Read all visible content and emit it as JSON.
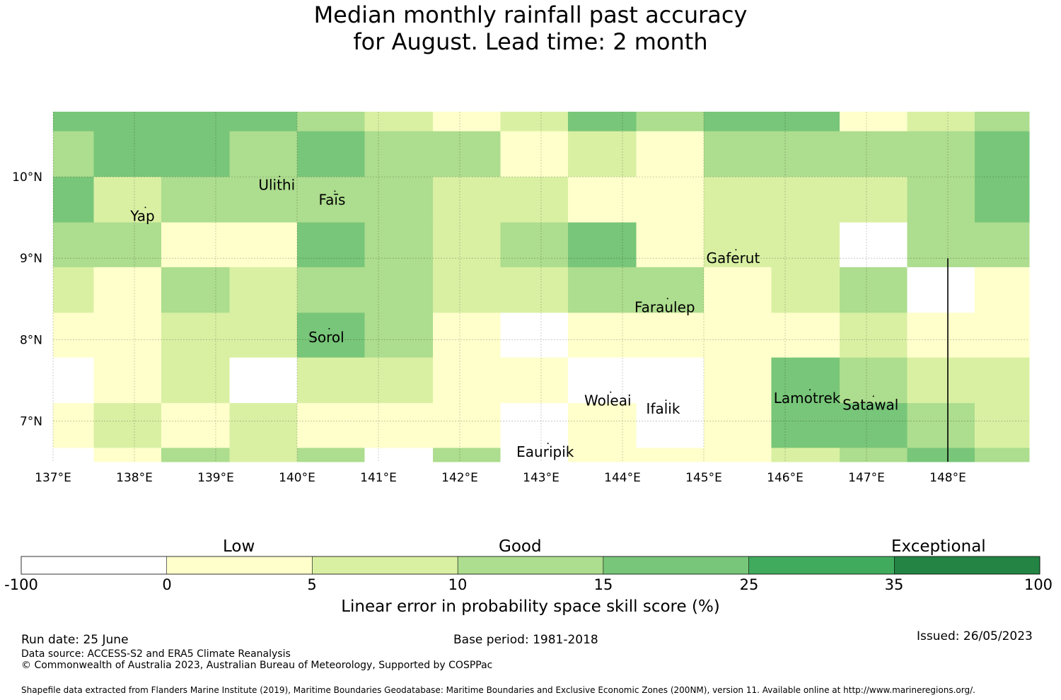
{
  "title": {
    "line1": "Median monthly rainfall past accuracy",
    "line2": "for August. Lead time: 2 month"
  },
  "map": {
    "lon_range": [
      137,
      149
    ],
    "lat_range": [
      6.5,
      10.8
    ],
    "lon_ticks": [
      {
        "value": 137,
        "label": "137°E"
      },
      {
        "value": 138,
        "label": "138°E"
      },
      {
        "value": 139,
        "label": "139°E"
      },
      {
        "value": 140,
        "label": "140°E"
      },
      {
        "value": 141,
        "label": "141°E"
      },
      {
        "value": 142,
        "label": "142°E"
      },
      {
        "value": 143,
        "label": "143°E"
      },
      {
        "value": 144,
        "label": "144°E"
      },
      {
        "value": 145,
        "label": "145°E"
      },
      {
        "value": 146,
        "label": "146°E"
      },
      {
        "value": 147,
        "label": "147°E"
      },
      {
        "value": 148,
        "label": "148°E"
      }
    ],
    "lat_ticks": [
      {
        "value": 10,
        "label": "10°N"
      },
      {
        "value": 9,
        "label": "9°N"
      },
      {
        "value": 8,
        "label": "8°N"
      },
      {
        "value": 7,
        "label": "7°N"
      }
    ],
    "col_edges": [
      137,
      137.5,
      138.33,
      139.17,
      140,
      140.83,
      141.67,
      142.5,
      143.33,
      144.17,
      145,
      145.83,
      146.67,
      147.5,
      148.33,
      149
    ],
    "row_edges": [
      10.8,
      10.56,
      10,
      9.44,
      8.89,
      8.33,
      7.78,
      7.22,
      6.67,
      6.5
    ],
    "grid_classes": [
      [
        3,
        3,
        3,
        3,
        2,
        1,
        0,
        1,
        3,
        2,
        3,
        3,
        0,
        1,
        2
      ],
      [
        2,
        3,
        3,
        2,
        3,
        2,
        2,
        0,
        1,
        0,
        2,
        2,
        2,
        2,
        3
      ],
      [
        3,
        1,
        2,
        2,
        2,
        2,
        1,
        1,
        0,
        0,
        1,
        1,
        1,
        2,
        3
      ],
      [
        2,
        2,
        0,
        0,
        3,
        2,
        1,
        2,
        3,
        0,
        1,
        1,
        -1,
        2,
        2
      ],
      [
        1,
        0,
        2,
        1,
        2,
        2,
        1,
        1,
        2,
        2,
        0,
        1,
        2,
        -1,
        0
      ],
      [
        0,
        0,
        1,
        1,
        3,
        2,
        0,
        -1,
        0,
        0,
        0,
        0,
        1,
        0,
        0
      ],
      [
        -1,
        0,
        1,
        -1,
        1,
        1,
        0,
        0,
        -1,
        -1,
        0,
        3,
        2,
        1,
        1
      ],
      [
        0,
        1,
        0,
        1,
        0,
        0,
        0,
        -1,
        0,
        -1,
        0,
        3,
        3,
        2,
        1
      ],
      [
        -1,
        0,
        2,
        1,
        2,
        -1,
        2,
        -1,
        0,
        0,
        0,
        1,
        2,
        3,
        2
      ]
    ],
    "places": [
      {
        "name": "Ulithi",
        "lon": 139.75,
        "lat": 9.9
      },
      {
        "name": "Faīs",
        "lon": 140.43,
        "lat": 9.72
      },
      {
        "name": "Yap",
        "lon": 138.1,
        "lat": 9.52
      },
      {
        "name": "Gaferut",
        "lon": 145.36,
        "lat": 9.0
      },
      {
        "name": "Faraulep",
        "lon": 144.52,
        "lat": 8.4
      },
      {
        "name": "Sorol",
        "lon": 140.36,
        "lat": 8.03
      },
      {
        "name": "Lamotrek",
        "lon": 146.27,
        "lat": 7.28
      },
      {
        "name": "Satawal",
        "lon": 147.05,
        "lat": 7.2
      },
      {
        "name": "Woleai",
        "lon": 143.82,
        "lat": 7.25
      },
      {
        "name": "Ifalik",
        "lon": 144.5,
        "lat": 7.15
      },
      {
        "name": "Eauripik",
        "lon": 143.05,
        "lat": 6.62
      }
    ],
    "boundary_line": {
      "lon": 148,
      "lat_from": 6.5,
      "lat_to": 9.0
    }
  },
  "colorbar": {
    "colors": [
      "#ffffff",
      "#ffffcc",
      "#d9f0a3",
      "#addd8e",
      "#78c679",
      "#41ab5d",
      "#238443"
    ],
    "ticks": [
      "-100",
      "0",
      "5",
      "10",
      "15",
      "25",
      "35",
      "100"
    ],
    "categories": [
      "Low",
      "Good",
      "Exceptional"
    ],
    "label": "Linear error in probability space skill score (%)"
  },
  "footer": {
    "run_date": "Run date: 25 June",
    "base_period": "Base period: 1981-2018",
    "issued": "Issued: 26/05/2023",
    "data_source": "Data source: ACCESS-S2 and ERA5 Climate Reanalysis",
    "copyright": "© Commonwealth of Australia 2023, Australian Bureau of Meteorology, Supported by COSPPac",
    "shapefile": "Shapefile data extracted from Flanders Marine Institute (2019), Maritime Boundaries Geodatabase: Maritime Boundaries and Exclusive Economic Zones (200NM), version 11. Available online at http://www.marineregions.org/."
  }
}
